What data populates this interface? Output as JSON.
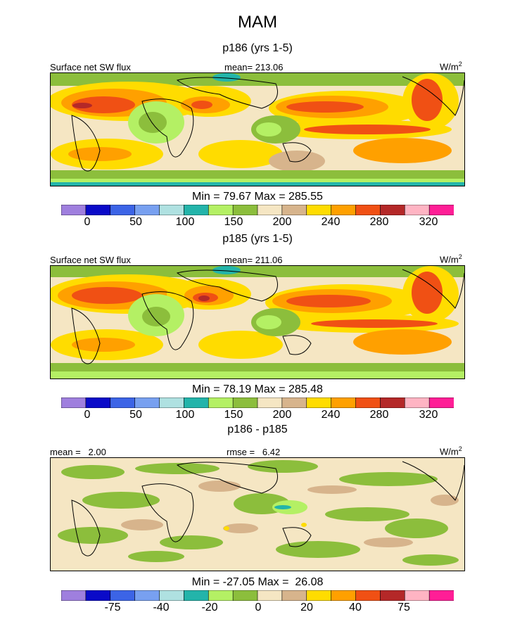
{
  "page_title": "MAM",
  "units_base": "W/m",
  "units_exp": "2",
  "panels": [
    {
      "subtitle": "p186 (yrs 1-5)",
      "left_label": "Surface net SW flux",
      "center_label": "mean= 213.06",
      "minmax": "Min =  79.67 Max = 285.55",
      "colorbar_ticks": [
        "0",
        "50",
        "100",
        "150",
        "200",
        "240",
        "280",
        "320"
      ]
    },
    {
      "subtitle": "p185 (yrs 1-5)",
      "left_label": "Surface net SW flux",
      "center_label": "mean= 211.06",
      "minmax": "Min =  78.19 Max = 285.48",
      "colorbar_ticks": [
        "0",
        "50",
        "100",
        "150",
        "200",
        "240",
        "280",
        "320"
      ]
    },
    {
      "subtitle": "p186 - p185",
      "left_label": "mean =   2.00",
      "center_label": "rmse =   6.42",
      "minmax": "Min = -27.05 Max =  26.08",
      "colorbar_ticks": [
        "-75",
        "-40",
        "-20",
        "0",
        "20",
        "40",
        "75"
      ]
    }
  ],
  "colorbar_colors": [
    "#9f7fde",
    "#0a0ac8",
    "#3c64e6",
    "#78a0f0",
    "#afe1e1",
    "#23b4aa",
    "#b4f064",
    "#8cbe3c",
    "#f5e6c3",
    "#d7b48c",
    "#ffdc00",
    "#ffa000",
    "#f05014",
    "#b42828",
    "#ffb4c3",
    "#ff1e96"
  ],
  "chart_data": [
    {
      "type": "heatmap",
      "title": "p186 (yrs 1-5)",
      "variable": "Surface net SW flux",
      "units": "W/m2",
      "mean": 213.06,
      "min": 79.67,
      "max": 285.55,
      "levels": [
        0,
        25,
        50,
        75,
        100,
        125,
        150,
        175,
        200,
        220,
        240,
        260,
        280,
        300,
        320
      ],
      "tick_labels": [
        "0",
        "50",
        "100",
        "150",
        "200",
        "240",
        "280",
        "320"
      ]
    },
    {
      "type": "heatmap",
      "title": "p185 (yrs 1-5)",
      "variable": "Surface net SW flux",
      "units": "W/m2",
      "mean": 211.06,
      "min": 78.19,
      "max": 285.48,
      "levels": [
        0,
        25,
        50,
        75,
        100,
        125,
        150,
        175,
        200,
        220,
        240,
        260,
        280,
        300,
        320
      ],
      "tick_labels": [
        "0",
        "50",
        "100",
        "150",
        "200",
        "240",
        "280",
        "320"
      ]
    },
    {
      "type": "heatmap",
      "title": "p186 - p185",
      "units": "W/m2",
      "mean": 2.0,
      "rmse": 6.42,
      "min": -27.05,
      "max": 26.08,
      "levels": [
        -100,
        -75,
        -60,
        -40,
        -30,
        -20,
        -10,
        0,
        10,
        20,
        30,
        40,
        60,
        75,
        100
      ],
      "tick_labels": [
        "-75",
        "-40",
        "-20",
        "0",
        "20",
        "40",
        "75"
      ]
    }
  ]
}
